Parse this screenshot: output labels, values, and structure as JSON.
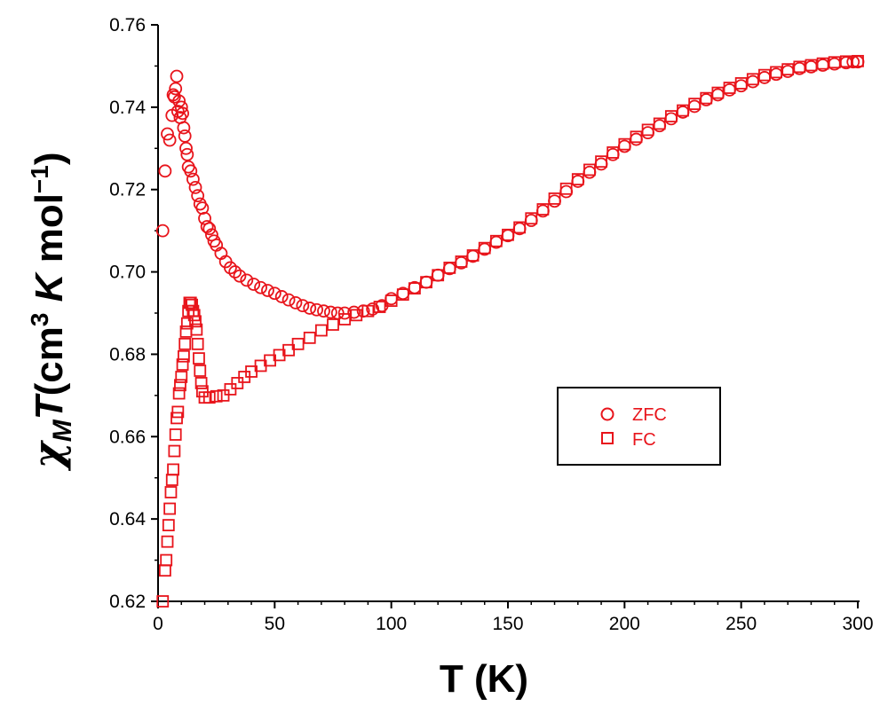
{
  "chart_data": {
    "type": "scatter",
    "xlabel": "T (K)",
    "ylabel_parts": {
      "chi": "χ",
      "sub_m": "M",
      "t_italic": "T",
      "open": "(cm",
      "sup3": "3",
      "k_italic": "K",
      "mol": "mol",
      "sup_neg1": "−1",
      "close": ")"
    },
    "xlim": [
      0,
      300
    ],
    "ylim": [
      0.62,
      0.76
    ],
    "x_ticks": [
      "0",
      "50",
      "100",
      "150",
      "200",
      "250",
      "300"
    ],
    "y_ticks": [
      "0.62",
      "0.64",
      "0.66",
      "0.68",
      "0.70",
      "0.72",
      "0.74",
      "0.76"
    ],
    "grid": false,
    "legend_position": "right-middle",
    "marker_color": "#e8141b",
    "series": [
      {
        "name": "ZFC",
        "marker": "circle",
        "points": [
          [
            2,
            0.71
          ],
          [
            3,
            0.7245
          ],
          [
            4,
            0.7335
          ],
          [
            5,
            0.732
          ],
          [
            6,
            0.738
          ],
          [
            6.5,
            0.743
          ],
          [
            7,
            0.7425
          ],
          [
            7.5,
            0.7445
          ],
          [
            8,
            0.7475
          ],
          [
            8.5,
            0.739
          ],
          [
            9,
            0.7415
          ],
          [
            9.5,
            0.7375
          ],
          [
            10,
            0.74
          ],
          [
            10.5,
            0.7385
          ],
          [
            11,
            0.735
          ],
          [
            11.5,
            0.733
          ],
          [
            12,
            0.73
          ],
          [
            12.5,
            0.7285
          ],
          [
            13,
            0.7255
          ],
          [
            14,
            0.7245
          ],
          [
            15,
            0.7225
          ],
          [
            16,
            0.7205
          ],
          [
            17,
            0.7185
          ],
          [
            18,
            0.7165
          ],
          [
            19,
            0.7155
          ],
          [
            20,
            0.713
          ],
          [
            21,
            0.711
          ],
          [
            22,
            0.7105
          ],
          [
            23,
            0.709
          ],
          [
            24,
            0.7075
          ],
          [
            25,
            0.7065
          ],
          [
            27,
            0.7045
          ],
          [
            29,
            0.7025
          ],
          [
            31,
            0.701
          ],
          [
            33,
            0.7
          ],
          [
            35,
            0.699
          ],
          [
            38,
            0.698
          ],
          [
            41,
            0.697
          ],
          [
            44,
            0.6962
          ],
          [
            47,
            0.6955
          ],
          [
            50,
            0.6948
          ],
          [
            53,
            0.694
          ],
          [
            56,
            0.6932
          ],
          [
            59,
            0.6925
          ],
          [
            62,
            0.6918
          ],
          [
            65,
            0.6912
          ],
          [
            68,
            0.6908
          ],
          [
            71,
            0.6905
          ],
          [
            74,
            0.6902
          ],
          [
            77,
            0.69
          ],
          [
            80,
            0.69
          ],
          [
            84,
            0.6902
          ],
          [
            88,
            0.6905
          ],
          [
            92,
            0.691
          ],
          [
            96,
            0.6918
          ],
          [
            100,
            0.6935
          ],
          [
            105,
            0.6948
          ],
          [
            110,
            0.6962
          ],
          [
            115,
            0.6975
          ],
          [
            120,
            0.6992
          ],
          [
            125,
            0.7008
          ],
          [
            130,
            0.7022
          ],
          [
            135,
            0.7038
          ],
          [
            140,
            0.7055
          ],
          [
            145,
            0.7072
          ],
          [
            150,
            0.7088
          ],
          [
            155,
            0.7105
          ],
          [
            160,
            0.7125
          ],
          [
            165,
            0.7148
          ],
          [
            170,
            0.7172
          ],
          [
            175,
            0.7195
          ],
          [
            180,
            0.722
          ],
          [
            185,
            0.7242
          ],
          [
            190,
            0.7262
          ],
          [
            195,
            0.7285
          ],
          [
            200,
            0.7305
          ],
          [
            205,
            0.7322
          ],
          [
            210,
            0.7338
          ],
          [
            215,
            0.7355
          ],
          [
            220,
            0.7372
          ],
          [
            225,
            0.7388
          ],
          [
            230,
            0.7402
          ],
          [
            235,
            0.7418
          ],
          [
            240,
            0.743
          ],
          [
            245,
            0.7442
          ],
          [
            250,
            0.7452
          ],
          [
            255,
            0.7462
          ],
          [
            260,
            0.7472
          ],
          [
            265,
            0.748
          ],
          [
            270,
            0.7487
          ],
          [
            275,
            0.7494
          ],
          [
            280,
            0.7498
          ],
          [
            285,
            0.7502
          ],
          [
            290,
            0.7505
          ],
          [
            295,
            0.7508
          ],
          [
            298,
            0.751
          ],
          [
            300,
            0.751
          ]
        ]
      },
      {
        "name": "FC",
        "marker": "square",
        "points": [
          [
            2,
            0.62
          ],
          [
            3,
            0.6275
          ],
          [
            3.5,
            0.63
          ],
          [
            4,
            0.6345
          ],
          [
            4.5,
            0.6385
          ],
          [
            5,
            0.6425
          ],
          [
            5.5,
            0.6465
          ],
          [
            6,
            0.6495
          ],
          [
            6.5,
            0.652
          ],
          [
            7,
            0.6565
          ],
          [
            7.5,
            0.6605
          ],
          [
            8,
            0.6645
          ],
          [
            8.5,
            0.666
          ],
          [
            9,
            0.6705
          ],
          [
            9.5,
            0.6725
          ],
          [
            10,
            0.6745
          ],
          [
            10.5,
            0.6775
          ],
          [
            11,
            0.6795
          ],
          [
            11.5,
            0.6825
          ],
          [
            12,
            0.6855
          ],
          [
            12.5,
            0.6875
          ],
          [
            13,
            0.6905
          ],
          [
            13.5,
            0.6925
          ],
          [
            14,
            0.6925
          ],
          [
            14.5,
            0.692
          ],
          [
            15,
            0.6905
          ],
          [
            15.5,
            0.6895
          ],
          [
            16,
            0.688
          ],
          [
            16.5,
            0.686
          ],
          [
            17,
            0.6825
          ],
          [
            17.5,
            0.679
          ],
          [
            18,
            0.676
          ],
          [
            18.5,
            0.673
          ],
          [
            19,
            0.671
          ],
          [
            20,
            0.6695
          ],
          [
            22,
            0.6695
          ],
          [
            25,
            0.6698
          ],
          [
            28,
            0.67
          ],
          [
            31,
            0.6715
          ],
          [
            34,
            0.673
          ],
          [
            37,
            0.6745
          ],
          [
            40,
            0.6758
          ],
          [
            44,
            0.6772
          ],
          [
            48,
            0.6785
          ],
          [
            52,
            0.6798
          ],
          [
            56,
            0.681
          ],
          [
            60,
            0.6825
          ],
          [
            65,
            0.684
          ],
          [
            70,
            0.6858
          ],
          [
            75,
            0.6872
          ],
          [
            80,
            0.6885
          ],
          [
            85,
            0.6895
          ],
          [
            90,
            0.6905
          ],
          [
            95,
            0.6915
          ],
          [
            100,
            0.693
          ],
          [
            105,
            0.6945
          ],
          [
            110,
            0.696
          ],
          [
            115,
            0.6975
          ],
          [
            120,
            0.6992
          ],
          [
            125,
            0.701
          ],
          [
            130,
            0.7025
          ],
          [
            135,
            0.704
          ],
          [
            140,
            0.7058
          ],
          [
            145,
            0.7075
          ],
          [
            150,
            0.709
          ],
          [
            155,
            0.7108
          ],
          [
            160,
            0.713
          ],
          [
            165,
            0.7152
          ],
          [
            170,
            0.7178
          ],
          [
            175,
            0.7202
          ],
          [
            180,
            0.7225
          ],
          [
            185,
            0.7248
          ],
          [
            190,
            0.7268
          ],
          [
            195,
            0.729
          ],
          [
            200,
            0.731
          ],
          [
            205,
            0.7328
          ],
          [
            210,
            0.7345
          ],
          [
            215,
            0.736
          ],
          [
            220,
            0.7378
          ],
          [
            225,
            0.7392
          ],
          [
            230,
            0.7408
          ],
          [
            235,
            0.7422
          ],
          [
            240,
            0.7435
          ],
          [
            245,
            0.7447
          ],
          [
            250,
            0.7458
          ],
          [
            255,
            0.7468
          ],
          [
            260,
            0.7478
          ],
          [
            265,
            0.7485
          ],
          [
            270,
            0.7492
          ],
          [
            275,
            0.7498
          ],
          [
            280,
            0.7502
          ],
          [
            285,
            0.7506
          ],
          [
            290,
            0.7509
          ],
          [
            295,
            0.7511
          ],
          [
            300,
            0.7512
          ]
        ]
      }
    ]
  }
}
